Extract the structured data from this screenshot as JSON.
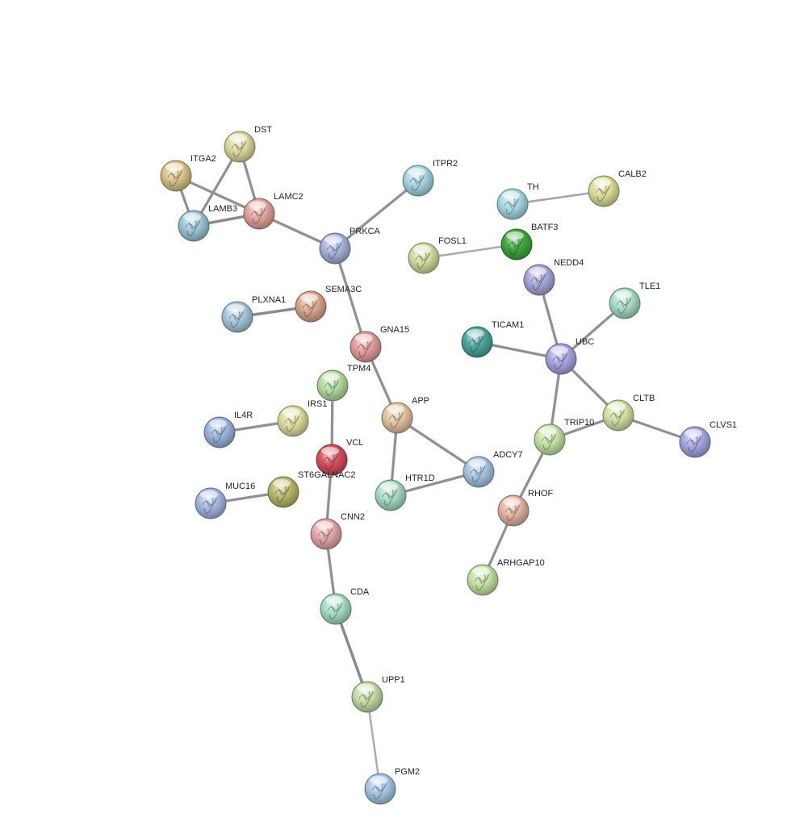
{
  "network": {
    "nodes": [
      {
        "id": "DST",
        "label": "DST",
        "color": "#dcd9a0"
      },
      {
        "id": "ITGA2",
        "label": "ITGA2",
        "color": "#d9c48a"
      },
      {
        "id": "LAMC2",
        "label": "LAMC2",
        "color": "#e2a59c"
      },
      {
        "id": "LAMB3",
        "label": "LAMB3",
        "color": "#9cc6d8"
      },
      {
        "id": "ITPR2",
        "label": "ITPR2",
        "color": "#a6d4e2"
      },
      {
        "id": "PRKCA",
        "label": "PRKCA",
        "color": "#a8b2dc"
      },
      {
        "id": "TH",
        "label": "TH",
        "color": "#a6d8e2"
      },
      {
        "id": "CALB2",
        "label": "CALB2",
        "color": "#dcdc9a"
      },
      {
        "id": "FOSL1",
        "label": "FOSL1",
        "color": "#d2dca0"
      },
      {
        "id": "BATF3",
        "label": "BATF3",
        "color": "#3fa83f"
      },
      {
        "id": "NEDD4",
        "label": "NEDD4",
        "color": "#a6a6dc"
      },
      {
        "id": "SEMA3C",
        "label": "SEMA3C",
        "color": "#d8a88e"
      },
      {
        "id": "PLXNA1",
        "label": "PLXNA1",
        "color": "#a6c8dc"
      },
      {
        "id": "TLE1",
        "label": "TLE1",
        "color": "#a6dcc4"
      },
      {
        "id": "GNA15",
        "label": "GNA15",
        "color": "#e29c9c"
      },
      {
        "id": "TICAM1",
        "label": "TICAM1",
        "color": "#4fa4a0"
      },
      {
        "id": "UBC",
        "label": "UBC",
        "color": "#a6a6e2"
      },
      {
        "id": "TPM4",
        "label": "TPM4",
        "color": "#b4dca0"
      },
      {
        "id": "CLTB",
        "label": "CLTB",
        "color": "#d2e2a6"
      },
      {
        "id": "APP",
        "label": "APP",
        "color": "#e2c4a0"
      },
      {
        "id": "IRS1",
        "label": "IRS1",
        "color": "#dcdc9e"
      },
      {
        "id": "IL4R",
        "label": "IL4R",
        "color": "#9cb4dc"
      },
      {
        "id": "TRIP10",
        "label": "TRIP10",
        "color": "#c4e2a6"
      },
      {
        "id": "CLVS1",
        "label": "CLVS1",
        "color": "#a6a6e2"
      },
      {
        "id": "VCL",
        "label": "VCL",
        "color": "#d64f5a"
      },
      {
        "id": "ST6GALNAC2",
        "label": "ST6GALNAC2",
        "color": "#b8b86a"
      },
      {
        "id": "ADCY7",
        "label": "ADCY7",
        "color": "#a6c4e2"
      },
      {
        "id": "HTR1D",
        "label": "HTR1D",
        "color": "#a6dcc4"
      },
      {
        "id": "MUC16",
        "label": "MUC16",
        "color": "#a6b8e2"
      },
      {
        "id": "RHOF",
        "label": "RHOF",
        "color": "#e2b4a0"
      },
      {
        "id": "CNN2",
        "label": "CNN2",
        "color": "#e2a6aa"
      },
      {
        "id": "ARHGAP10",
        "label": "ARHGAP10",
        "color": "#c4e2a6"
      },
      {
        "id": "CDA",
        "label": "CDA",
        "color": "#a6dcc4"
      },
      {
        "id": "UPP1",
        "label": "UPP1",
        "color": "#c4dca6"
      },
      {
        "id": "PGM2",
        "label": "PGM2",
        "color": "#a6c8e2"
      }
    ],
    "edges": [
      {
        "source": "ITGA2",
        "target": "LAMB3",
        "weight": 0.8
      },
      {
        "source": "ITGA2",
        "target": "LAMC2",
        "weight": 0.8
      },
      {
        "source": "DST",
        "target": "LAMB3",
        "weight": 0.8
      },
      {
        "source": "DST",
        "target": "LAMC2",
        "weight": 0.8
      },
      {
        "source": "LAMB3",
        "target": "LAMC2",
        "weight": 0.9
      },
      {
        "source": "LAMC2",
        "target": "PRKCA",
        "weight": 0.8
      },
      {
        "source": "PRKCA",
        "target": "ITPR2",
        "weight": 0.8
      },
      {
        "source": "PRKCA",
        "target": "GNA15",
        "weight": 0.8
      },
      {
        "source": "TH",
        "target": "CALB2",
        "weight": 0.5
      },
      {
        "source": "FOSL1",
        "target": "BATF3",
        "weight": 0.45
      },
      {
        "source": "PLXNA1",
        "target": "SEMA3C",
        "weight": 0.9
      },
      {
        "source": "GNA15",
        "target": "APP",
        "weight": 0.8
      },
      {
        "source": "APP",
        "target": "ADCY7",
        "weight": 0.8
      },
      {
        "source": "APP",
        "target": "HTR1D",
        "weight": 0.8
      },
      {
        "source": "HTR1D",
        "target": "ADCY7",
        "weight": 0.8
      },
      {
        "source": "IL4R",
        "target": "IRS1",
        "weight": 0.8
      },
      {
        "source": "TPM4",
        "target": "VCL",
        "weight": 0.8
      },
      {
        "source": "VCL",
        "target": "CNN2",
        "weight": 0.8
      },
      {
        "source": "MUC16",
        "target": "ST6GALNAC2",
        "weight": 0.8
      },
      {
        "source": "CNN2",
        "target": "CDA",
        "weight": 0.8
      },
      {
        "source": "CDA",
        "target": "UPP1",
        "weight": 0.9
      },
      {
        "source": "UPP1",
        "target": "PGM2",
        "weight": 0.45
      },
      {
        "source": "NEDD4",
        "target": "UBC",
        "weight": 0.8
      },
      {
        "source": "TLE1",
        "target": "UBC",
        "weight": 0.8
      },
      {
        "source": "TICAM1",
        "target": "UBC",
        "weight": 0.8
      },
      {
        "source": "UBC",
        "target": "CLTB",
        "weight": 0.8
      },
      {
        "source": "UBC",
        "target": "TRIP10",
        "weight": 0.8
      },
      {
        "source": "TRIP10",
        "target": "CLTB",
        "weight": 0.8
      },
      {
        "source": "CLTB",
        "target": "CLVS1",
        "weight": 0.8
      },
      {
        "source": "TRIP10",
        "target": "RHOF",
        "weight": 0.8
      },
      {
        "source": "RHOF",
        "target": "ARHGAP10",
        "weight": 0.8
      }
    ]
  }
}
